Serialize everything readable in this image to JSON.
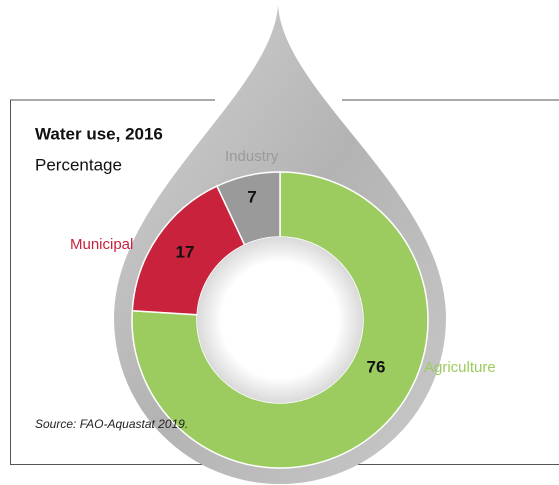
{
  "chart_data": {
    "type": "donut",
    "title": "Water use, 2016",
    "subtitle": "Percentage",
    "categories": [
      "Agriculture",
      "Municipal",
      "Industry"
    ],
    "values": [
      76,
      17,
      7
    ],
    "colors": [
      "#9ccc5f",
      "#c8223c",
      "#9a9a9a"
    ],
    "source": "Source:  FAO-Aquastat 2019."
  }
}
